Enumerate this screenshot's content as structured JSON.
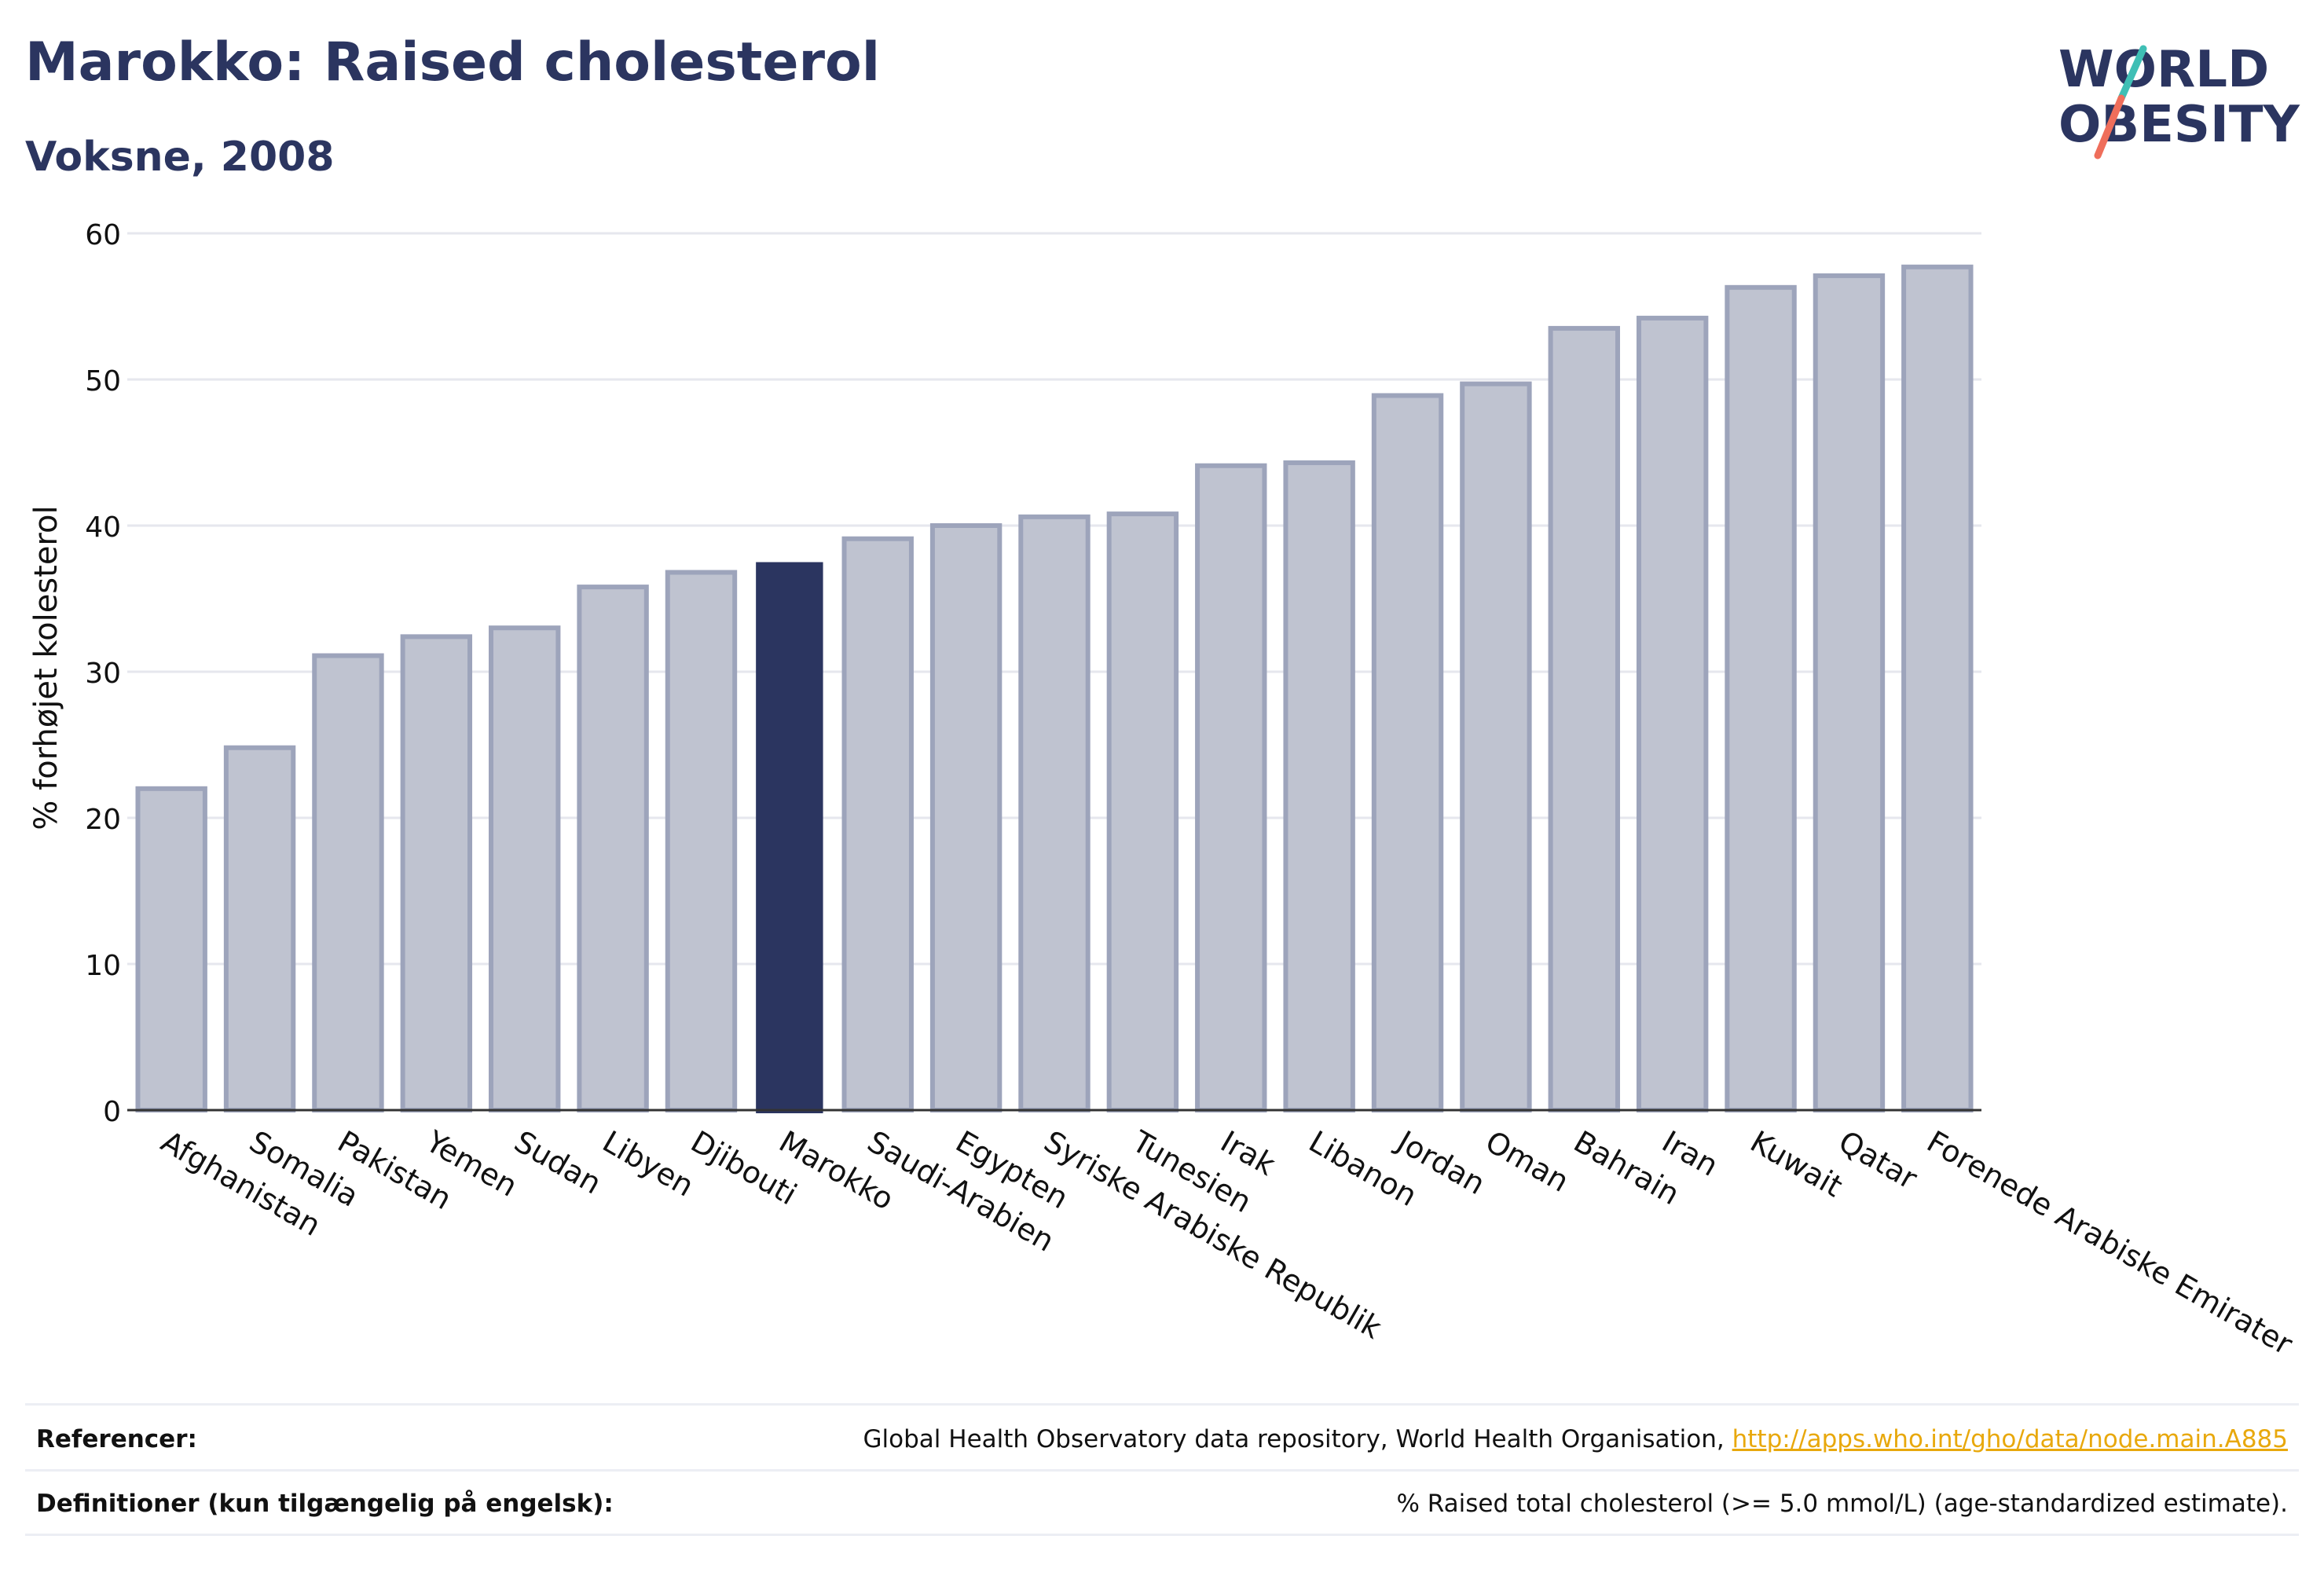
{
  "header": {
    "title": "Marokko: Raised cholesterol",
    "subtitle": "Voksne, 2008"
  },
  "logo": {
    "line1": "WORLD",
    "line2": "OBESITY",
    "colors": {
      "text": "#2b3560",
      "slash_top": "#3fbfb5",
      "slash_bottom": "#ef6e5b"
    }
  },
  "chart_data": {
    "type": "bar",
    "title": "Marokko: Raised cholesterol",
    "subtitle": "Voksne, 2008",
    "ylabel": "% forhøjet kolesterol",
    "xlabel": "",
    "ylim": [
      0,
      60
    ],
    "yticks": [
      0,
      10,
      20,
      30,
      40,
      50,
      60
    ],
    "grid": true,
    "highlight": "Marokko",
    "colors": {
      "bar": "#bfc3d0",
      "bar_edge": "#9da4bb",
      "highlight": "#2b3560"
    },
    "categories": [
      "Afghanistan",
      "Somalia",
      "Pakistan",
      "Yemen",
      "Sudan",
      "Libyen",
      "Djibouti",
      "Marokko",
      "Saudi-Arabien",
      "Egypten",
      "Syriske Arabiske Republik",
      "Tunesien",
      "Irak",
      "Libanon",
      "Jordan",
      "Oman",
      "Bahrain",
      "Iran",
      "Kuwait",
      "Qatar",
      "Forenede Arabiske Emirater"
    ],
    "values": [
      22.0,
      24.8,
      31.1,
      32.4,
      33.0,
      35.8,
      36.8,
      37.5,
      39.1,
      40.0,
      40.6,
      40.8,
      44.1,
      44.3,
      48.9,
      49.7,
      53.5,
      54.2,
      56.3,
      57.1,
      57.7
    ]
  },
  "footer": {
    "references_label": "Referencer:",
    "references_text": "Global Health Observatory data repository, World Health Organisation, ",
    "references_link": "http://apps.who.int/gho/data/node.main.A885",
    "definitions_label": "Definitioner (kun tilgængelig på engelsk):",
    "definitions_text": "% Raised total cholesterol (>= 5.0 mmol/L) (age-standardized estimate)."
  }
}
